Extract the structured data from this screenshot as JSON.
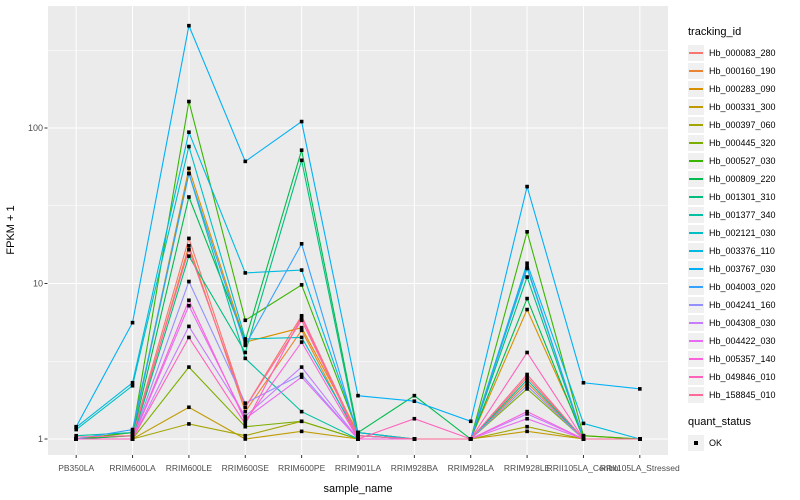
{
  "legend": {
    "tracking_title": "tracking_id",
    "quant_title": "quant_status",
    "quant_ok_label": "OK"
  },
  "chart_data": {
    "type": "line",
    "title": "",
    "xlabel": "sample_name",
    "ylabel": "FPKM + 1",
    "y_scale": "log10",
    "y_ticks": [
      1,
      10,
      100
    ],
    "y_tick_labels": [
      "1",
      "10",
      "100"
    ],
    "y_minor_gridlines": [
      3.162,
      31.62,
      316.2
    ],
    "ylim_approx": [
      0.8,
      610
    ],
    "grid": true,
    "legend_position": "right",
    "marker": "black-square",
    "quant_status_value": "OK",
    "panel_color": "#EBEBEB",
    "gridline_color": "#FFFFFF",
    "x_categories": [
      "PB350LA",
      "RRIM600LA",
      "RRIM600LE",
      "RRIM600SE",
      "RRIM600PE",
      "RRIM901LA",
      "RRIM928BA",
      "RRIM928LA",
      "RRIM928LE",
      "RRII105LA_Control",
      "RRII105LA_Stressed"
    ],
    "series": [
      {
        "name": "Hb_000083_280",
        "color": "#F8766D",
        "values": [
          1.0,
          1.05,
          19.5,
          1.6,
          6.2,
          1.05,
          1.0,
          1.0,
          2.5,
          1.0,
          1.0
        ]
      },
      {
        "name": "Hb_000160_190",
        "color": "#EA8331",
        "values": [
          1.0,
          1.0,
          17.5,
          1.5,
          5.0,
          1.0,
          1.0,
          1.0,
          2.3,
          1.0,
          1.0
        ]
      },
      {
        "name": "Hb_000283_090",
        "color": "#D89000",
        "values": [
          1.0,
          1.1,
          55,
          4.2,
          5.2,
          1.1,
          1.0,
          1.0,
          6.8,
          1.05,
          1.0
        ]
      },
      {
        "name": "Hb_000331_300",
        "color": "#C09B00",
        "values": [
          1.0,
          1.0,
          1.6,
          1.0,
          1.12,
          1.0,
          1.0,
          1.0,
          1.12,
          1.0,
          1.0
        ]
      },
      {
        "name": "Hb_000397_060",
        "color": "#A3A500",
        "values": [
          1.0,
          1.0,
          1.25,
          1.05,
          1.3,
          1.0,
          1.0,
          1.0,
          1.2,
          1.0,
          1.0
        ]
      },
      {
        "name": "Hb_000445_320",
        "color": "#7CAE00",
        "values": [
          1.0,
          1.0,
          2.9,
          1.2,
          1.3,
          1.0,
          1.0,
          1.0,
          2.1,
          1.0,
          1.0
        ]
      },
      {
        "name": "Hb_000527_030",
        "color": "#39B600",
        "values": [
          1.0,
          1.1,
          148,
          5.8,
          9.8,
          1.1,
          1.0,
          1.0,
          21.5,
          1.05,
          1.0
        ]
      },
      {
        "name": "Hb_000809_220",
        "color": "#00BB4E",
        "values": [
          1.0,
          1.05,
          36,
          4.3,
          72,
          1.1,
          1.9,
          1.0,
          8.0,
          1.0,
          1.0
        ]
      },
      {
        "name": "Hb_001301_310",
        "color": "#00BF7D",
        "values": [
          1.0,
          1.0,
          15,
          3.6,
          62,
          1.05,
          1.0,
          1.0,
          11,
          1.0,
          1.0
        ]
      },
      {
        "name": "Hb_001377_340",
        "color": "#00C1A3",
        "values": [
          1.05,
          1.1,
          51,
          3.3,
          1.5,
          1.0,
          1.0,
          1.0,
          2.4,
          1.0,
          1.0
        ]
      },
      {
        "name": "Hb_002121_030",
        "color": "#00BFC4",
        "values": [
          1.15,
          2.2,
          76,
          4.4,
          4.5,
          1.05,
          1.0,
          1.0,
          12.5,
          1.0,
          1.0
        ]
      },
      {
        "name": "Hb_003376_110",
        "color": "#00BAE0",
        "values": [
          1.19,
          2.3,
          94,
          11.7,
          12.2,
          1.1,
          1.0,
          1.0,
          13.5,
          1.26,
          1.0
        ]
      },
      {
        "name": "Hb_003767_030",
        "color": "#00B0F6",
        "values": [
          1.2,
          5.6,
          455,
          61,
          110,
          1.9,
          1.75,
          1.3,
          42,
          2.3,
          2.1
        ]
      },
      {
        "name": "Hb_004003_020",
        "color": "#35A2FF",
        "values": [
          1.0,
          1.15,
          51,
          4.0,
          18,
          1.05,
          1.0,
          1.0,
          12.8,
          1.0,
          1.0
        ]
      },
      {
        "name": "Hb_004241_160",
        "color": "#9590FF",
        "values": [
          1.0,
          1.0,
          10.3,
          1.7,
          2.6,
          1.0,
          1.0,
          1.0,
          2.2,
          1.0,
          1.0
        ]
      },
      {
        "name": "Hb_004308_030",
        "color": "#C77CFF",
        "values": [
          1.0,
          1.0,
          5.3,
          1.4,
          2.9,
          1.0,
          1.0,
          1.0,
          1.45,
          1.0,
          1.0
        ]
      },
      {
        "name": "Hb_004422_030",
        "color": "#E76BF3",
        "values": [
          1.0,
          1.0,
          7.2,
          1.35,
          2.5,
          1.0,
          1.0,
          1.0,
          1.35,
          1.0,
          1.0
        ]
      },
      {
        "name": "Hb_005357_140",
        "color": "#FA62DB",
        "values": [
          1.0,
          1.0,
          7.8,
          1.3,
          4.2,
          1.0,
          1.0,
          1.0,
          1.5,
          1.0,
          1.0
        ]
      },
      {
        "name": "Hb_049846_010",
        "color": "#FF62BC",
        "values": [
          1.0,
          1.0,
          4.5,
          1.25,
          6.1,
          1.0,
          1.35,
          1.0,
          3.6,
          1.0,
          1.0
        ]
      },
      {
        "name": "Hb_158845_010",
        "color": "#FF6A98",
        "values": [
          1.03,
          1.05,
          16.5,
          1.6,
          5.8,
          1.05,
          1.0,
          1.0,
          2.6,
          1.0,
          1.0
        ]
      }
    ]
  }
}
